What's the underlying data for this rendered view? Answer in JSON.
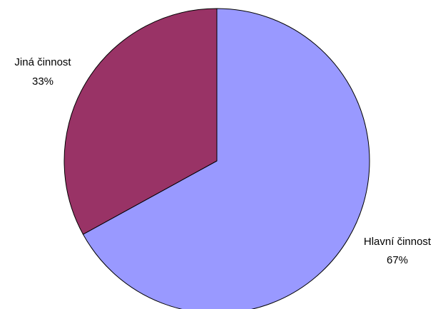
{
  "chart_data": {
    "type": "pie",
    "start_angle_deg": 0,
    "direction": "clockwise",
    "slices": [
      {
        "label": "Hlavní činnost",
        "percent_label": "67%",
        "value": 67,
        "color": "#9999ff"
      },
      {
        "label": "Jiná činnost",
        "percent_label": "33%",
        "value": 33,
        "color": "#993366"
      }
    ],
    "border_color": "#000000"
  }
}
